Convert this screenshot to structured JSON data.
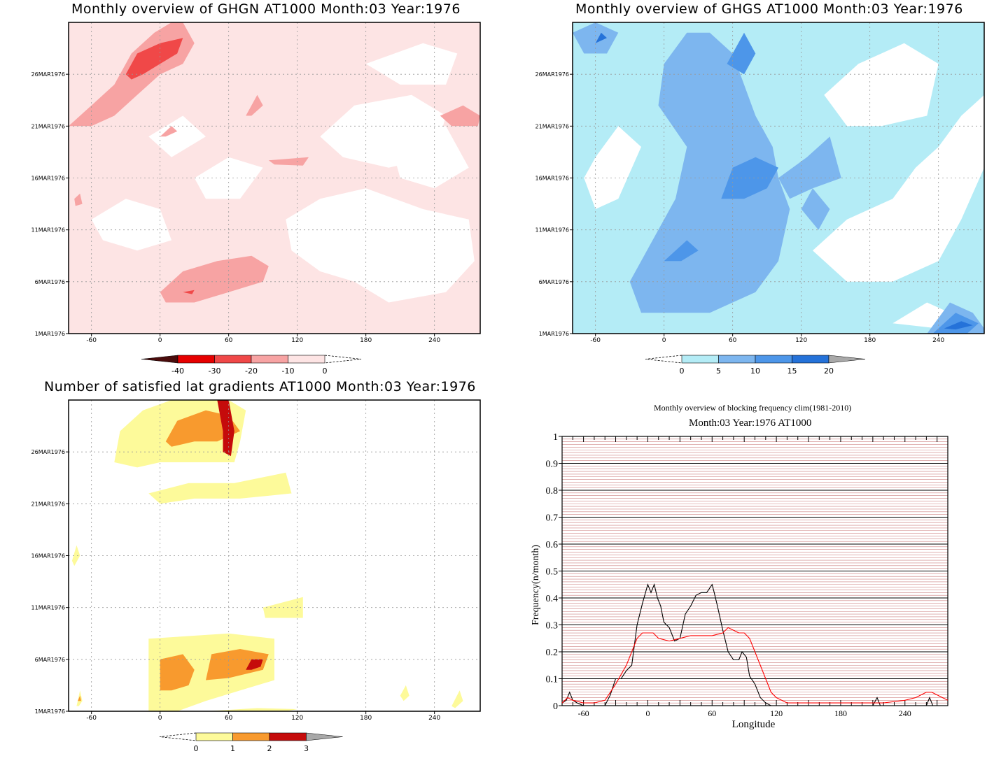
{
  "colors": {
    "ghgn_levels": [
      "#4a0c0c",
      "#e60000",
      "#f04848",
      "#f7a3a3",
      "#fde4e4"
    ],
    "ghgs_levels": [
      "#b4ecf6",
      "#7db6ef",
      "#4d96e9",
      "#2572d9"
    ],
    "sat_levels": [
      "#fdfa9a",
      "#f89a2e",
      "#c50b0b"
    ],
    "over_grey": "#a8a8a8",
    "black_line": "#000000",
    "red_line": "#ff0000",
    "grid_red": "#c06060"
  },
  "panels": {
    "ghgn": {
      "title": "Monthly overview of GHGN AT1000 Month:03 Year:1976",
      "colorbar_labels": [
        "-40",
        "-30",
        "-20",
        "-10",
        "0"
      ]
    },
    "ghgs": {
      "title": "Monthly overview of GHGS AT1000 Month:03 Year:1976",
      "colorbar_labels": [
        "0",
        "5",
        "10",
        "15",
        "20"
      ]
    },
    "sat": {
      "title": "Number of satisfied lat gradients AT1000 Month:03 Year:1976",
      "colorbar_labels": [
        "0",
        "1",
        "2",
        "3"
      ]
    },
    "freq": {
      "title1": "Monthly overview of blocking frequency clim(1981-2010)",
      "title2": "Month:03 Year:1976  AT1000"
    }
  },
  "map_axes": {
    "x_ticks": [
      "-60",
      "0",
      "60",
      "120",
      "180",
      "240"
    ],
    "x_values": [
      -60,
      0,
      60,
      120,
      180,
      240
    ],
    "xlim": [
      -80,
      280
    ],
    "y_ticks": [
      "1MAR1976",
      "6MAR1976",
      "11MAR1976",
      "16MAR1976",
      "21MAR1976",
      "26MAR1976"
    ],
    "y_values": [
      1,
      6,
      11,
      16,
      21,
      26
    ],
    "ylim": [
      1,
      31
    ]
  },
  "chart_data": [
    {
      "type": "heatmap",
      "title": "Monthly overview of GHGN AT1000 Month:03 Year:1976",
      "xlim": [
        -80,
        280
      ],
      "ylim": [
        1,
        31
      ],
      "levels": [
        -40,
        -30,
        -20,
        -10,
        0
      ],
      "regions": [
        {
          "level": "-10..0",
          "x": [
            -80,
            280
          ],
          "y": [
            1,
            31
          ]
        },
        {
          "level": "-20..-10",
          "x": [
            -80,
            -25
          ],
          "y": [
            21,
            31
          ]
        },
        {
          "level": "-20..-10",
          "x": [
            -5,
            95
          ],
          "y": [
            4,
            8
          ]
        },
        {
          "level": "-30..-20",
          "x": [
            -30,
            20
          ],
          "y": [
            26,
            29
          ]
        }
      ]
    },
    {
      "type": "heatmap",
      "title": "Monthly overview of GHGS AT1000 Month:03 Year:1976",
      "xlim": [
        -80,
        280
      ],
      "ylim": [
        1,
        31
      ],
      "levels": [
        0,
        5,
        10,
        15,
        20
      ],
      "regions": [
        {
          "level": "0..5",
          "x": [
            -80,
            280
          ],
          "y": [
            1,
            31
          ]
        },
        {
          "level": "5..10",
          "x": [
            -20,
            100
          ],
          "y": [
            3,
            30
          ]
        },
        {
          "level": "10..15",
          "x": [
            40,
            110
          ],
          "y": [
            14,
            18
          ]
        },
        {
          "level": "10..15",
          "x": [
            230,
            270
          ],
          "y": [
            1,
            3
          ]
        }
      ]
    },
    {
      "type": "heatmap",
      "title": "Number of satisfied lat gradients AT1000 Month:03 Year:1976",
      "xlim": [
        -80,
        280
      ],
      "ylim": [
        1,
        31
      ],
      "levels": [
        0,
        1,
        2,
        3
      ],
      "regions": [
        {
          "level": "0..1",
          "x": [
            -40,
            80
          ],
          "y": [
            25,
            31
          ]
        },
        {
          "level": "1..2",
          "x": [
            5,
            70
          ],
          "y": [
            27,
            31
          ]
        },
        {
          "level": "2..3",
          "x": [
            50,
            65
          ],
          "y": [
            26,
            31
          ]
        },
        {
          "level": "0..1",
          "x": [
            -10,
            100
          ],
          "y": [
            1,
            8
          ]
        },
        {
          "level": "1..2",
          "x": [
            0,
            90
          ],
          "y": [
            3,
            7
          ]
        },
        {
          "level": "2..3",
          "x": [
            75,
            92
          ],
          "y": [
            5,
            6
          ]
        }
      ]
    },
    {
      "type": "line",
      "title": "Monthly overview of blocking frequency clim(1981-2010)",
      "subtitle": "Month:03 Year:1976  AT1000",
      "xlabel": "Longitude",
      "ylabel": "Frequency(n/month)",
      "xlim": [
        -80,
        280
      ],
      "ylim": [
        0,
        1
      ],
      "x_ticks": [
        -60,
        0,
        60,
        120,
        180,
        240
      ],
      "y_ticks": [
        0,
        0.1,
        0.2,
        0.3,
        0.4,
        0.5,
        0.6,
        0.7,
        0.8,
        0.9,
        1
      ],
      "series": [
        {
          "color": "#000000",
          "x": [
            -80,
            -76,
            -73,
            -70,
            -66,
            -60,
            -50,
            -40,
            -35,
            -30,
            -25,
            -20,
            -15,
            -10,
            -5,
            0,
            3,
            6,
            9,
            12,
            15,
            20,
            25,
            30,
            35,
            40,
            45,
            50,
            55,
            60,
            62,
            65,
            70,
            75,
            80,
            85,
            88,
            92,
            95,
            100,
            105,
            110,
            115,
            120,
            130,
            140,
            150,
            160,
            170,
            180,
            190,
            200,
            210,
            214,
            217,
            220,
            230,
            240,
            250,
            260,
            263,
            266,
            270,
            275,
            280
          ],
          "y": [
            0.01,
            0.02,
            0.05,
            0.02,
            0.01,
            0.0,
            0.0,
            0.0,
            0.04,
            0.1,
            0.1,
            0.13,
            0.15,
            0.3,
            0.38,
            0.45,
            0.42,
            0.45,
            0.4,
            0.37,
            0.31,
            0.29,
            0.24,
            0.25,
            0.34,
            0.37,
            0.41,
            0.42,
            0.42,
            0.45,
            0.42,
            0.37,
            0.28,
            0.2,
            0.17,
            0.17,
            0.2,
            0.18,
            0.11,
            0.08,
            0.03,
            0.01,
            0.0,
            0.0,
            0.0,
            0.0,
            0.0,
            0.0,
            0.0,
            0.0,
            0.0,
            0.0,
            0.0,
            0.03,
            0.0,
            0.0,
            0.0,
            0.0,
            0.0,
            0.0,
            0.03,
            0.0,
            0.0,
            0.0,
            0.0
          ]
        },
        {
          "color": "#ff0000",
          "x": [
            -80,
            -75,
            -70,
            -60,
            -50,
            -40,
            -35,
            -30,
            -20,
            -10,
            -5,
            0,
            5,
            10,
            20,
            30,
            40,
            50,
            60,
            70,
            75,
            80,
            85,
            90,
            95,
            100,
            105,
            110,
            115,
            120,
            130,
            140,
            160,
            180,
            200,
            220,
            240,
            250,
            260,
            265,
            270,
            275,
            280
          ],
          "y": [
            0.01,
            0.03,
            0.02,
            0.01,
            0.01,
            0.02,
            0.05,
            0.08,
            0.15,
            0.25,
            0.27,
            0.27,
            0.27,
            0.25,
            0.24,
            0.25,
            0.26,
            0.26,
            0.26,
            0.27,
            0.29,
            0.28,
            0.27,
            0.27,
            0.25,
            0.2,
            0.15,
            0.1,
            0.05,
            0.03,
            0.01,
            0.01,
            0.01,
            0.01,
            0.01,
            0.01,
            0.02,
            0.03,
            0.05,
            0.05,
            0.04,
            0.03,
            0.02
          ]
        }
      ]
    }
  ]
}
